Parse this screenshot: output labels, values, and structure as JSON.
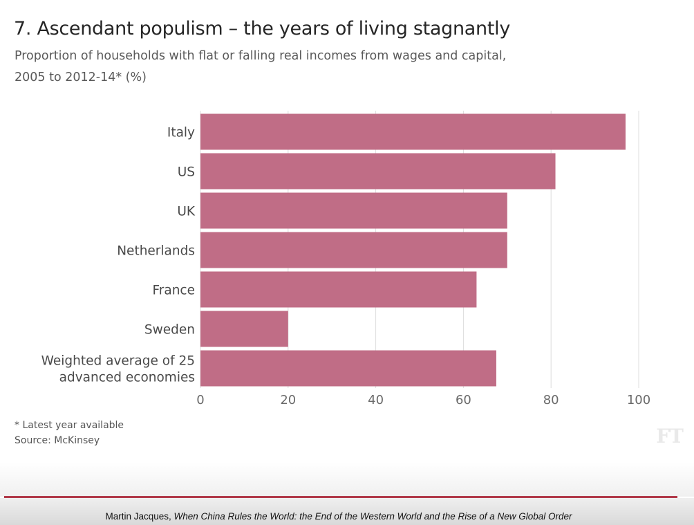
{
  "title": "7. Ascendant populism – the years of living stagnantly",
  "subtitle_line1": "Proportion of households with flat or falling real incomes from wages and capital,",
  "subtitle_line2": "2005 to 2012-14* (%)",
  "footnote": "* Latest year available",
  "source": "Source: McKinsey",
  "logo": "FT",
  "caption": {
    "author": "Martin Jacques, ",
    "book": "When China Rules the World: the End of the Western World and the Rise of a New Global Order"
  },
  "colors": {
    "bar": "#c06d86",
    "grid": "#dcdcdc",
    "rule": "#b13a4a"
  },
  "chart_data": {
    "type": "bar",
    "orientation": "horizontal",
    "title": "7. Ascendant populism – the years of living stagnantly",
    "categories": [
      "Italy",
      "US",
      "UK",
      "Netherlands",
      "France",
      "Sweden",
      "Weighted average of 25 advanced economies"
    ],
    "category_lines": [
      [
        "Italy"
      ],
      [
        "US"
      ],
      [
        "UK"
      ],
      [
        "Netherlands"
      ],
      [
        "France"
      ],
      [
        "Sweden"
      ],
      [
        "Weighted average of 25",
        "advanced economies"
      ]
    ],
    "values": [
      97,
      81,
      70,
      70,
      63,
      20,
      67.5
    ],
    "xlim": [
      0,
      100
    ],
    "xticks": [
      0,
      20,
      40,
      60,
      80,
      100
    ],
    "grid": true
  }
}
